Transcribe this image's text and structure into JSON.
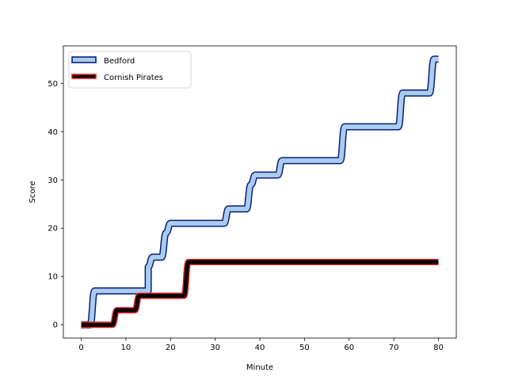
{
  "chart_data": {
    "type": "line",
    "title": "",
    "xlabel": "Minute",
    "ylabel": "Score",
    "xlim": [
      -4,
      84
    ],
    "ylim": [
      -2.75,
      57.75
    ],
    "xticks": [
      0,
      10,
      20,
      30,
      40,
      50,
      60,
      70,
      80
    ],
    "yticks": [
      0,
      10,
      20,
      30,
      40,
      50
    ],
    "grid": false,
    "legend_position": "top-left",
    "series": [
      {
        "name": "Bedford",
        "color": "#aaccee",
        "edge_color": "#0a1e78",
        "x": [
          0,
          2,
          3,
          15,
          15,
          16,
          18,
          19,
          20,
          32,
          33,
          37,
          38,
          39,
          44,
          45,
          58,
          59,
          71,
          72,
          78,
          79,
          80
        ],
        "y": [
          0,
          0,
          7,
          7,
          12,
          14,
          14,
          19,
          21,
          21,
          24,
          24,
          29,
          31,
          31,
          34,
          34,
          41,
          41,
          48,
          48,
          55,
          55
        ]
      },
      {
        "name": "Cornish Pirates",
        "color": "#000000",
        "edge_color": "#e02020",
        "x": [
          0,
          7,
          8,
          12,
          13,
          23,
          24,
          80
        ],
        "y": [
          0,
          0,
          3,
          3,
          6,
          6,
          13,
          13
        ]
      }
    ]
  }
}
